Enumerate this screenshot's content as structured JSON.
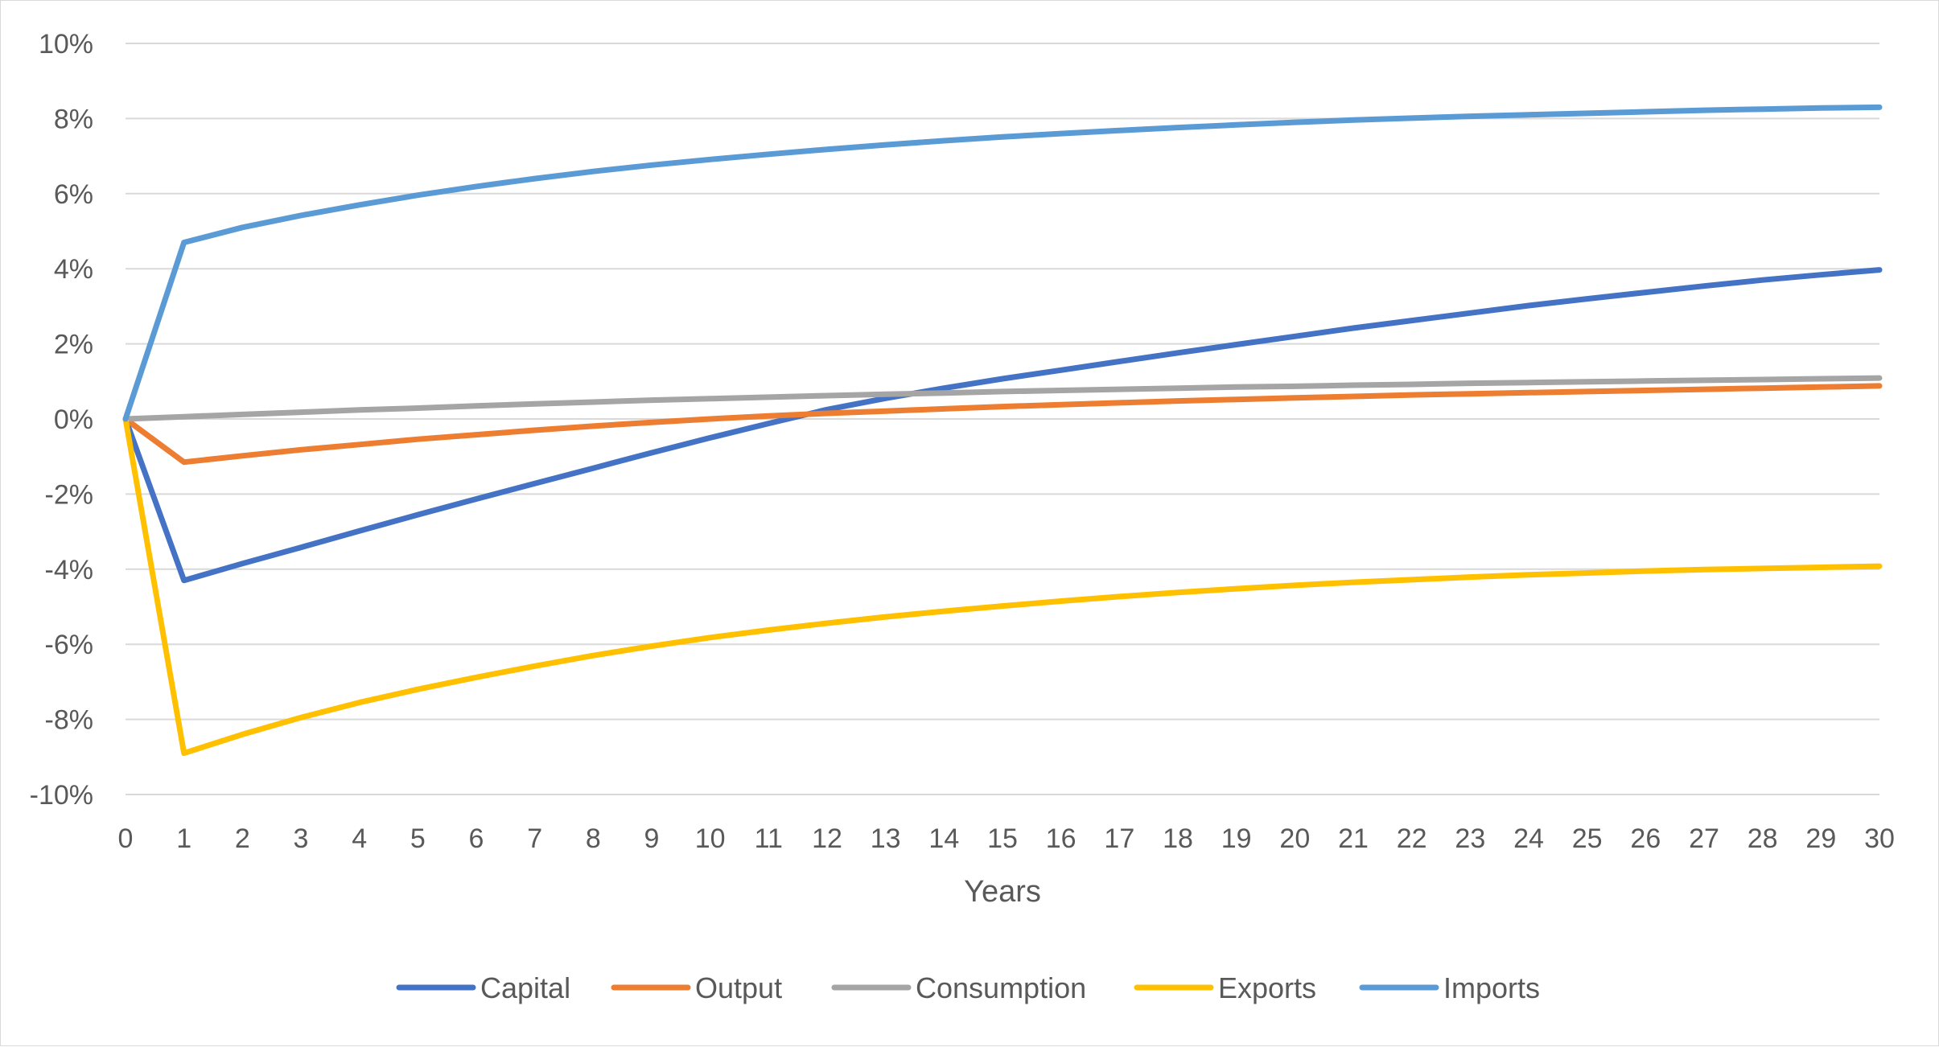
{
  "chart_data": {
    "type": "line",
    "title": "",
    "xlabel": "Years",
    "ylabel": "",
    "x": [
      0,
      1,
      2,
      3,
      4,
      5,
      6,
      7,
      8,
      9,
      10,
      11,
      12,
      13,
      14,
      15,
      16,
      17,
      18,
      19,
      20,
      21,
      22,
      23,
      24,
      25,
      26,
      27,
      28,
      29,
      30
    ],
    "xlim": [
      0,
      30
    ],
    "ylim": [
      -10,
      10
    ],
    "y_ticks": [
      -10,
      -8,
      -6,
      -4,
      -2,
      0,
      2,
      4,
      6,
      8,
      10
    ],
    "y_tick_labels": [
      "-10%",
      "-8%",
      "-6%",
      "-4%",
      "-2%",
      "0%",
      "2%",
      "4%",
      "6%",
      "8%",
      "10%"
    ],
    "y_unit": "%",
    "grid": "horizontal",
    "legend": "bottom",
    "series": [
      {
        "name": "Capital",
        "color": "#4472C4",
        "values": [
          0,
          -4.3,
          -3.85,
          -3.42,
          -2.98,
          -2.55,
          -2.13,
          -1.72,
          -1.31,
          -0.9,
          -0.5,
          -0.12,
          0.25,
          0.55,
          0.82,
          1.07,
          1.3,
          1.53,
          1.76,
          1.98,
          2.2,
          2.42,
          2.62,
          2.82,
          3.02,
          3.2,
          3.37,
          3.54,
          3.7,
          3.84,
          3.97
        ]
      },
      {
        "name": "Output",
        "color": "#ED7D31",
        "values": [
          0,
          -1.15,
          -0.98,
          -0.82,
          -0.68,
          -0.54,
          -0.42,
          -0.3,
          -0.19,
          -0.09,
          0.0,
          0.08,
          0.15,
          0.21,
          0.27,
          0.33,
          0.38,
          0.43,
          0.48,
          0.52,
          0.56,
          0.6,
          0.64,
          0.67,
          0.7,
          0.73,
          0.76,
          0.79,
          0.82,
          0.85,
          0.88
        ]
      },
      {
        "name": "Consumption",
        "color": "#A5A5A5",
        "values": [
          0,
          0.06,
          0.12,
          0.18,
          0.24,
          0.29,
          0.35,
          0.4,
          0.45,
          0.5,
          0.54,
          0.58,
          0.62,
          0.66,
          0.69,
          0.73,
          0.76,
          0.79,
          0.82,
          0.85,
          0.87,
          0.9,
          0.92,
          0.95,
          0.97,
          0.99,
          1.01,
          1.03,
          1.05,
          1.07,
          1.09
        ]
      },
      {
        "name": "Exports",
        "color": "#FFC000",
        "values": [
          0,
          -8.9,
          -8.4,
          -7.95,
          -7.55,
          -7.2,
          -6.88,
          -6.58,
          -6.3,
          -6.05,
          -5.82,
          -5.62,
          -5.44,
          -5.27,
          -5.12,
          -4.98,
          -4.85,
          -4.73,
          -4.62,
          -4.52,
          -4.43,
          -4.35,
          -4.28,
          -4.21,
          -4.15,
          -4.1,
          -4.05,
          -4.01,
          -3.98,
          -3.95,
          -3.92
        ]
      },
      {
        "name": "Imports",
        "color": "#5B9BD5",
        "values": [
          0,
          4.7,
          5.1,
          5.42,
          5.7,
          5.96,
          6.19,
          6.4,
          6.59,
          6.76,
          6.91,
          7.05,
          7.18,
          7.3,
          7.41,
          7.51,
          7.6,
          7.68,
          7.76,
          7.83,
          7.9,
          7.96,
          8.01,
          8.06,
          8.1,
          8.14,
          8.18,
          8.22,
          8.25,
          8.28,
          8.3
        ]
      }
    ]
  }
}
